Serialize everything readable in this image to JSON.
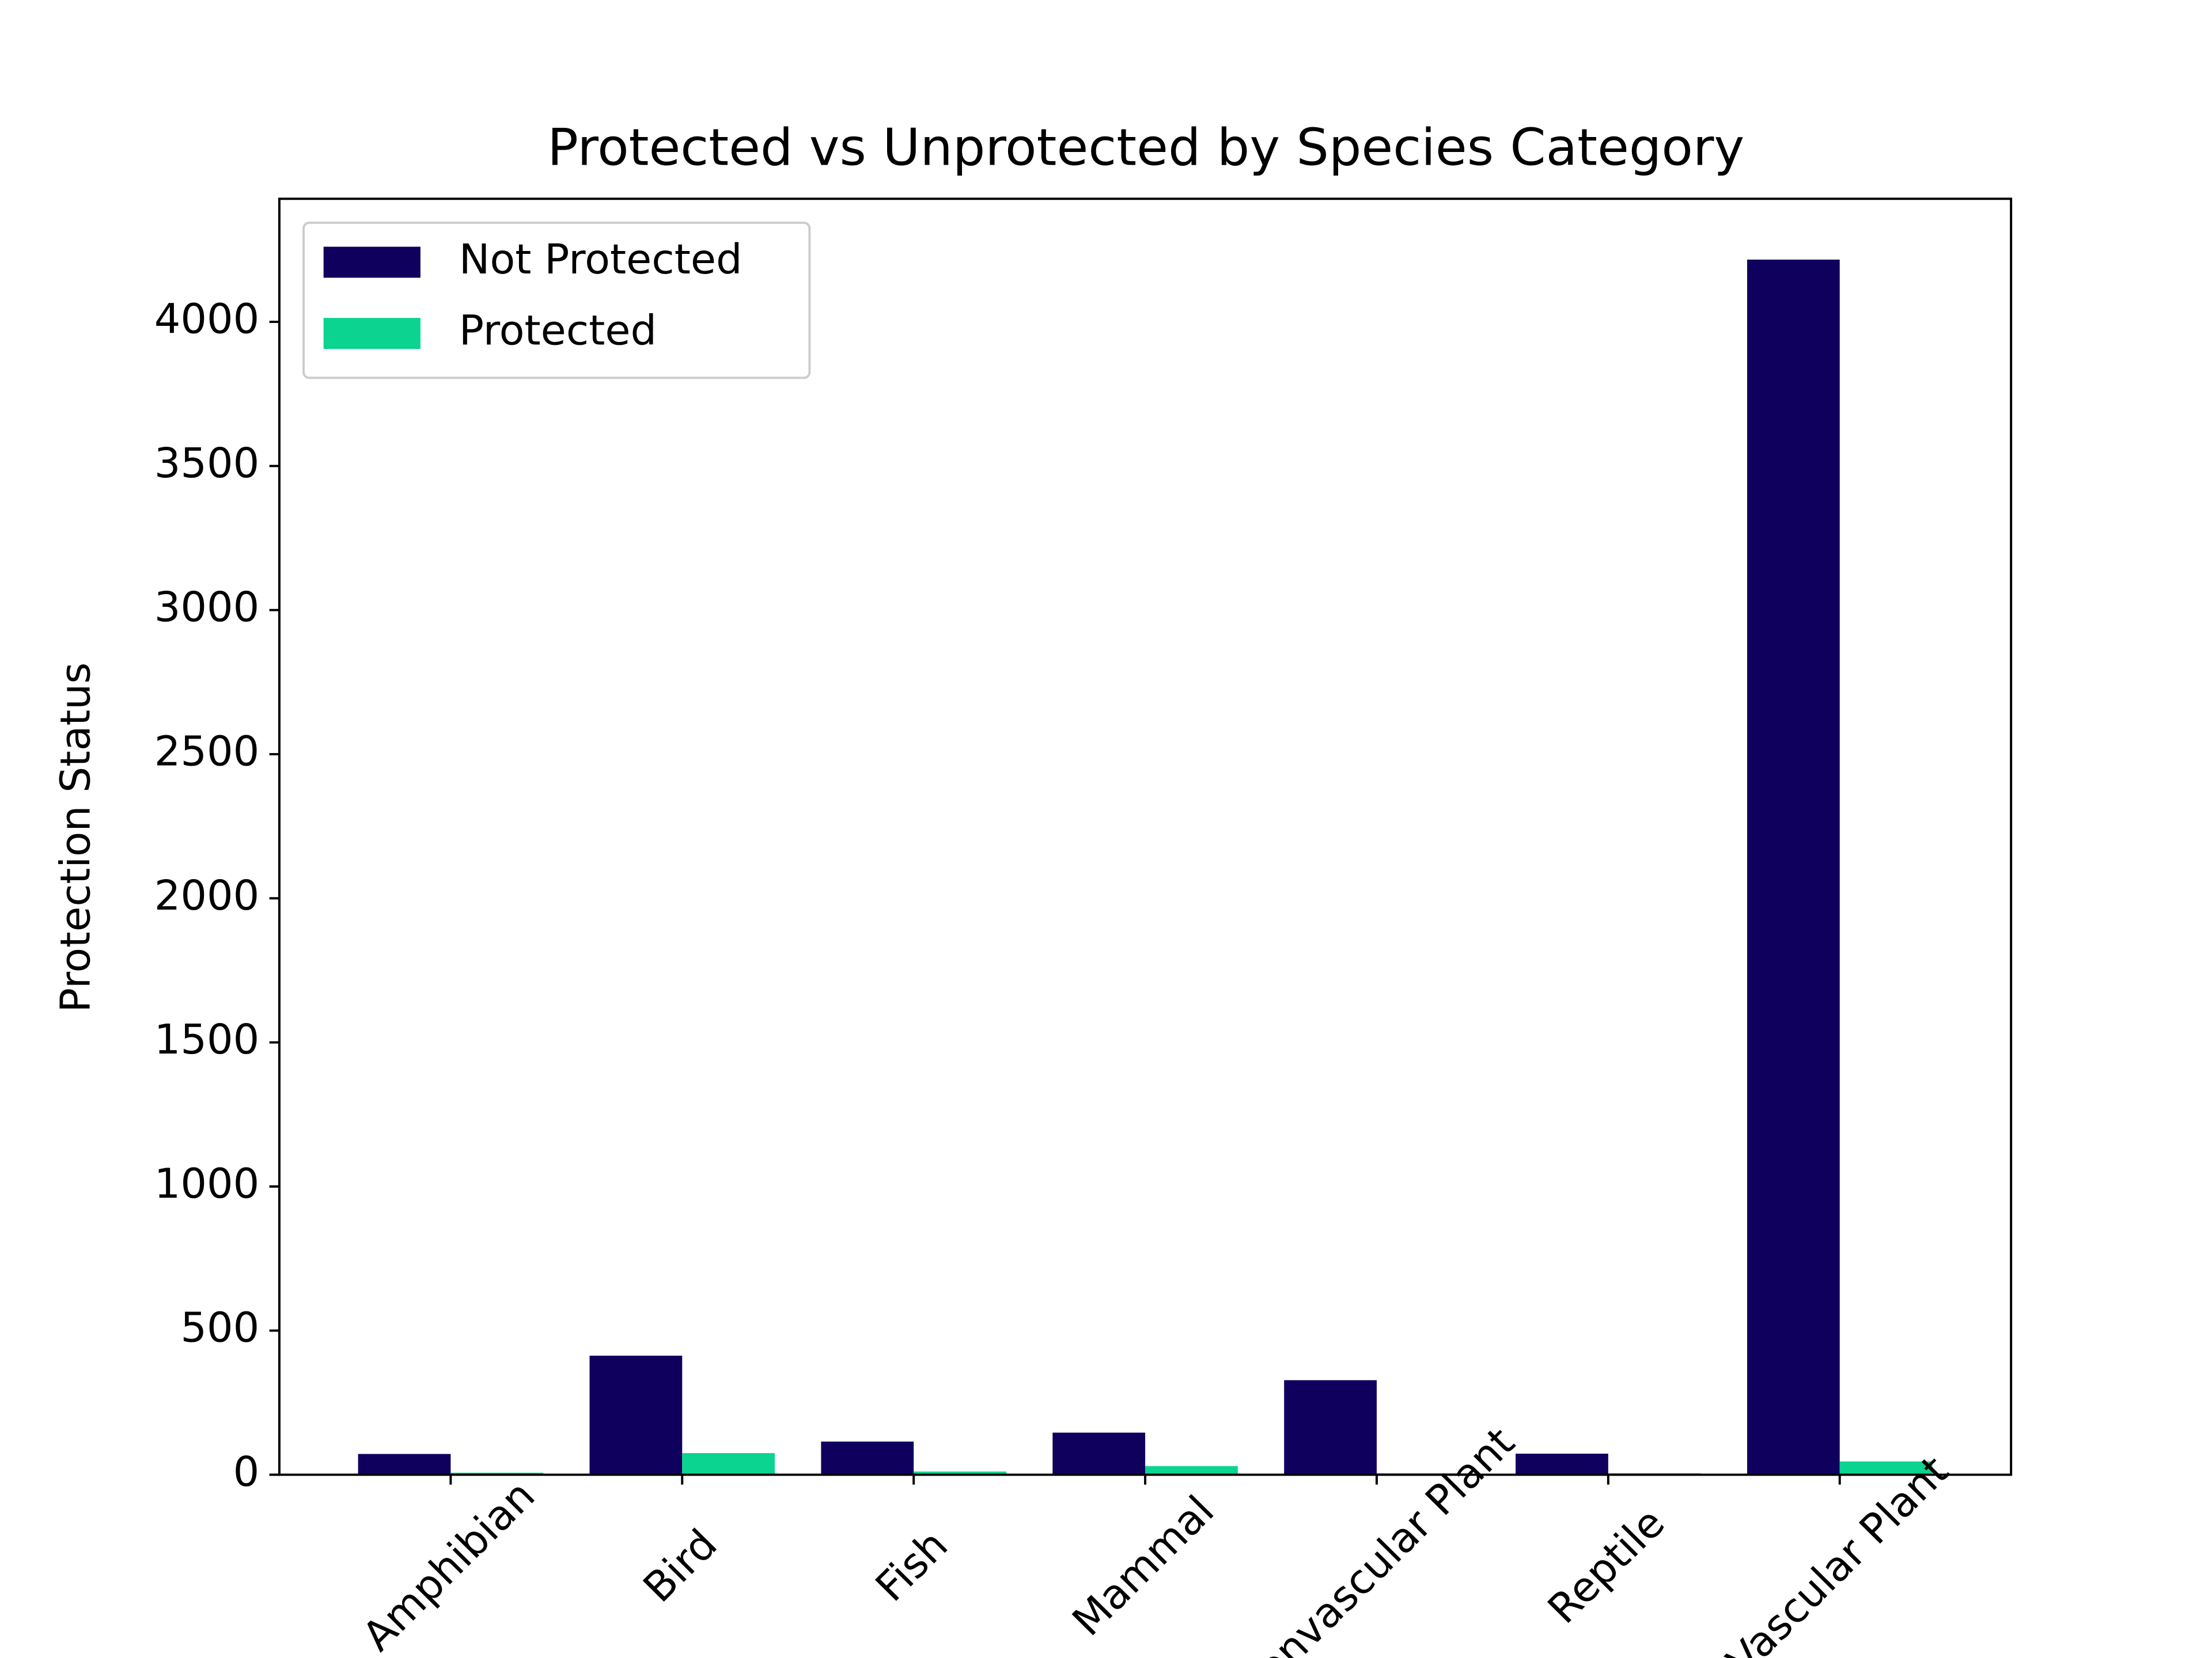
{
  "chart_data": {
    "type": "bar",
    "title": "Protected vs Unprotected by Species Category",
    "y_label": "Protection Status",
    "categories": [
      "Amphibian",
      "Bird",
      "Fish",
      "Mammal",
      "Nonvascular Plant",
      "Reptile",
      "Vascular Plant"
    ],
    "series": [
      {
        "name": "Not Protected",
        "color": "#10005e",
        "values": [
          72,
          413,
          115,
          146,
          328,
          73,
          4216
        ]
      },
      {
        "name": "Protected",
        "color": "#0ad48f",
        "values": [
          7,
          75,
          11,
          30,
          5,
          5,
          46
        ]
      }
    ],
    "ylim": [
      0,
      4427
    ],
    "yticks": [
      0,
      500,
      1000,
      1500,
      2000,
      2500,
      3000,
      3500,
      4000
    ],
    "legend": "upper left",
    "grid": false
  }
}
